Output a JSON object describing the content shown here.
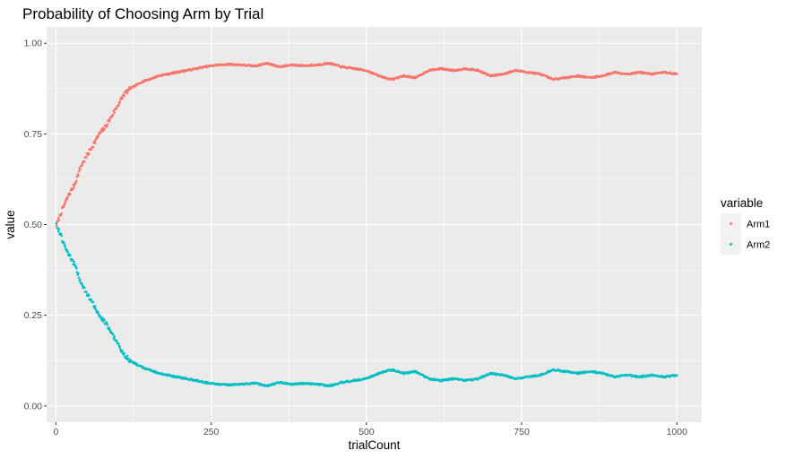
{
  "chart_data": {
    "type": "scatter",
    "title": "Probability of Choosing Arm by Trial",
    "xlabel": "trialCount",
    "ylabel": "value",
    "xlim": [
      -15,
      1040
    ],
    "ylim": [
      -0.045,
      1.045
    ],
    "x_ticks": [
      0,
      250,
      500,
      750,
      1000
    ],
    "x_tick_labels": [
      "0",
      "250",
      "500",
      "750",
      "1000"
    ],
    "y_ticks": [
      0.0,
      0.25,
      0.5,
      0.75,
      1.0
    ],
    "y_tick_labels": [
      "0.00",
      "0.25",
      "0.50",
      "0.75",
      "1.00"
    ],
    "grid": true,
    "legend": {
      "title": "variable",
      "position": "right"
    },
    "x_range": [
      1,
      1000
    ],
    "series": [
      {
        "name": "Arm1",
        "color": "#F8766D",
        "x_key": [
          1,
          10,
          20,
          30,
          40,
          50,
          60,
          70,
          80,
          90,
          100,
          110,
          120,
          130,
          140,
          150,
          165,
          180,
          200,
          220,
          240,
          260,
          280,
          300,
          320,
          340,
          360,
          380,
          400,
          420,
          440,
          460,
          480,
          500,
          520,
          540,
          560,
          580,
          600,
          620,
          640,
          660,
          680,
          700,
          720,
          740,
          760,
          780,
          800,
          820,
          840,
          860,
          880,
          900,
          920,
          940,
          960,
          980,
          1000
        ],
        "y_key": [
          0.5,
          0.54,
          0.58,
          0.61,
          0.66,
          0.69,
          0.72,
          0.75,
          0.77,
          0.8,
          0.83,
          0.86,
          0.875,
          0.885,
          0.895,
          0.9,
          0.91,
          0.915,
          0.922,
          0.928,
          0.935,
          0.94,
          0.942,
          0.94,
          0.937,
          0.945,
          0.935,
          0.94,
          0.938,
          0.94,
          0.945,
          0.935,
          0.93,
          0.925,
          0.91,
          0.9,
          0.91,
          0.905,
          0.925,
          0.93,
          0.925,
          0.93,
          0.925,
          0.91,
          0.915,
          0.925,
          0.92,
          0.915,
          0.9,
          0.905,
          0.91,
          0.905,
          0.91,
          0.92,
          0.915,
          0.92,
          0.915,
          0.92,
          0.915
        ]
      },
      {
        "name": "Arm2",
        "color": "#00BFC4",
        "x_key": [
          1,
          10,
          20,
          30,
          40,
          50,
          60,
          70,
          80,
          90,
          100,
          110,
          120,
          130,
          140,
          150,
          165,
          180,
          200,
          220,
          240,
          260,
          280,
          300,
          320,
          340,
          360,
          380,
          400,
          420,
          440,
          460,
          480,
          500,
          520,
          540,
          560,
          580,
          600,
          620,
          640,
          660,
          680,
          700,
          720,
          740,
          760,
          780,
          800,
          820,
          840,
          860,
          880,
          900,
          920,
          940,
          960,
          980,
          1000
        ],
        "y_key": [
          0.5,
          0.46,
          0.42,
          0.39,
          0.34,
          0.31,
          0.28,
          0.25,
          0.23,
          0.2,
          0.17,
          0.14,
          0.125,
          0.115,
          0.105,
          0.1,
          0.09,
          0.085,
          0.078,
          0.072,
          0.065,
          0.06,
          0.058,
          0.06,
          0.063,
          0.055,
          0.065,
          0.06,
          0.062,
          0.06,
          0.055,
          0.065,
          0.07,
          0.075,
          0.09,
          0.1,
          0.09,
          0.095,
          0.075,
          0.07,
          0.075,
          0.07,
          0.075,
          0.09,
          0.085,
          0.075,
          0.08,
          0.085,
          0.1,
          0.095,
          0.09,
          0.095,
          0.09,
          0.08,
          0.085,
          0.08,
          0.085,
          0.08,
          0.085
        ]
      }
    ]
  }
}
